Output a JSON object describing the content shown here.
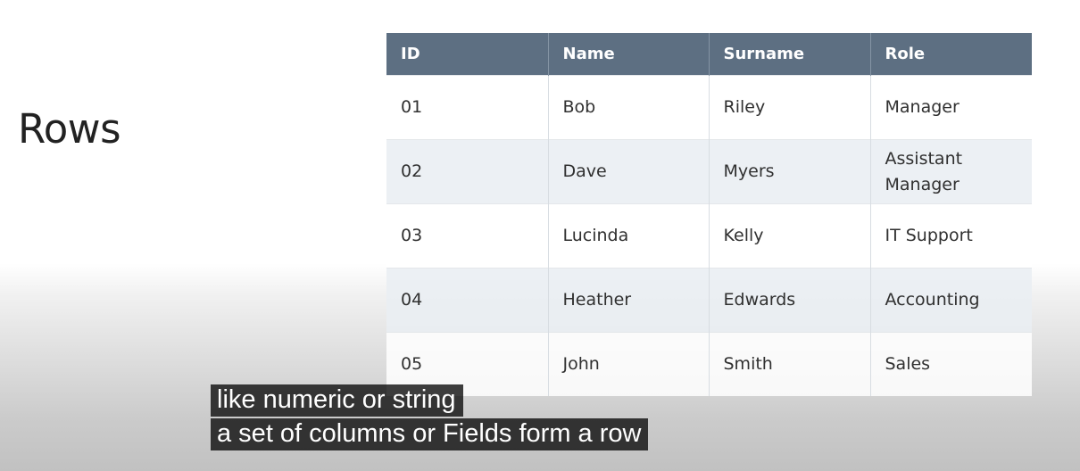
{
  "slide": {
    "title": "Rows"
  },
  "table": {
    "headers": [
      "ID",
      "Name",
      "Surname",
      "Role"
    ],
    "rows": [
      [
        "01",
        "Bob",
        "Riley",
        "Manager"
      ],
      [
        "02",
        "Dave",
        "Myers",
        "Assistant Manager"
      ],
      [
        "03",
        "Lucinda",
        "Kelly",
        "IT Support"
      ],
      [
        "04",
        "Heather",
        "Edwards",
        "Accounting"
      ],
      [
        "05",
        "John",
        "Smith",
        "Sales"
      ]
    ],
    "header_color": "#5d6f82"
  },
  "captions": {
    "line1": "like numeric or string",
    "line2": "a set of columns or Fields form a row"
  }
}
